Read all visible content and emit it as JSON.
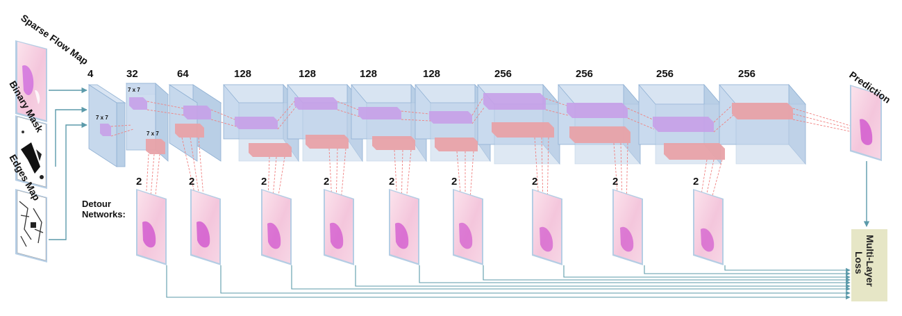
{
  "inputs": [
    {
      "label": "Sparse Flow Map"
    },
    {
      "label": "Binary Mask"
    },
    {
      "label": "Edges Map"
    }
  ],
  "layers": [
    {
      "channels": "4"
    },
    {
      "channels": "32"
    },
    {
      "channels": "64"
    },
    {
      "channels": "128"
    },
    {
      "channels": "128"
    },
    {
      "channels": "128"
    },
    {
      "channels": "128"
    },
    {
      "channels": "256"
    },
    {
      "channels": "256"
    },
    {
      "channels": "256"
    },
    {
      "channels": "256"
    }
  ],
  "kernel_labels": [
    "7 x 7",
    "7 x 7",
    "7 x 7"
  ],
  "detour": {
    "label_line1": "Detour",
    "label_line2": "Networks:",
    "outputs": [
      "2",
      "2",
      "2",
      "2",
      "2",
      "2",
      "2",
      "2",
      "2"
    ]
  },
  "prediction": {
    "label": "Prediction"
  },
  "loss": {
    "line1": "Multi-Layer",
    "line2": "Loss"
  },
  "colors": {
    "volume": "#c9d9ec",
    "volume_edge": "#8fb0d3",
    "kernel_purple": "#c7a0e8",
    "kernel_red": "#e8a2a8",
    "dash": "#f08080",
    "arrow": "#5b9aaa",
    "loss_box": "#e6e6c6"
  }
}
